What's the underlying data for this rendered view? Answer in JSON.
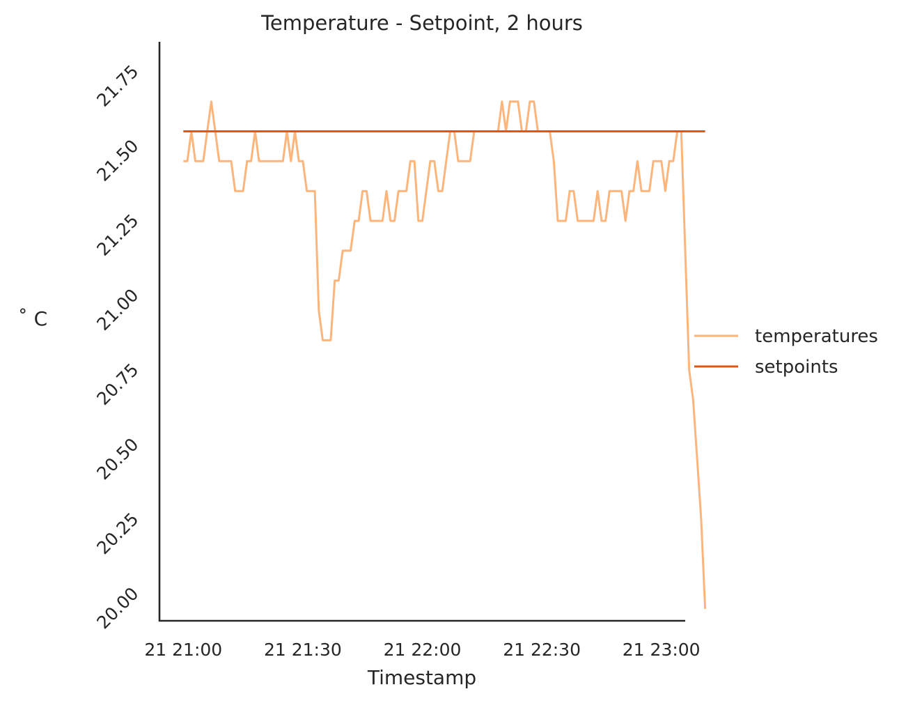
{
  "chart_data": {
    "type": "line",
    "title": "Temperature - Setpoint, 2 hours",
    "xlabel": "Timestamp",
    "ylabel": "$^\\circ$C",
    "ylabel_display": "˚ C",
    "x_tick_labels": [
      "21 21:00",
      "21 21:30",
      "21 22:00",
      "21 22:30",
      "21 23:00"
    ],
    "y_tick_labels": [
      "20.00",
      "20.25",
      "20.50",
      "20.75",
      "21.00",
      "21.25",
      "21.50",
      "21.75"
    ],
    "y_ticks": [
      20.0,
      20.25,
      20.5,
      20.75,
      21.0,
      21.25,
      21.5,
      21.75
    ],
    "x_ticks": [
      "21:00",
      "21:30",
      "22:00",
      "22:30",
      "23:00"
    ],
    "xlim": [
      "20:54",
      "23:06"
    ],
    "ylim": [
      19.96,
      21.9
    ],
    "grid": false,
    "legend_position": "center-right outside",
    "series": [
      {
        "name": "temperatures",
        "color": "#fdb57b",
        "points": [
          [
            "21:00",
            21.5
          ],
          [
            "21:01",
            21.5
          ],
          [
            "21:02",
            21.6
          ],
          [
            "21:03",
            21.5
          ],
          [
            "21:04",
            21.5
          ],
          [
            "21:05",
            21.5
          ],
          [
            "21:06",
            21.6
          ],
          [
            "21:07",
            21.7
          ],
          [
            "21:08",
            21.6
          ],
          [
            "21:09",
            21.5
          ],
          [
            "21:10",
            21.5
          ],
          [
            "21:11",
            21.5
          ],
          [
            "21:12",
            21.5
          ],
          [
            "21:13",
            21.4
          ],
          [
            "21:14",
            21.4
          ],
          [
            "21:15",
            21.4
          ],
          [
            "21:16",
            21.5
          ],
          [
            "21:17",
            21.5
          ],
          [
            "21:18",
            21.6
          ],
          [
            "21:19",
            21.5
          ],
          [
            "21:20",
            21.5
          ],
          [
            "21:21",
            21.5
          ],
          [
            "21:22",
            21.5
          ],
          [
            "21:23",
            21.5
          ],
          [
            "21:24",
            21.5
          ],
          [
            "21:25",
            21.5
          ],
          [
            "21:26",
            21.6
          ],
          [
            "21:27",
            21.5
          ],
          [
            "21:28",
            21.6
          ],
          [
            "21:29",
            21.5
          ],
          [
            "21:30",
            21.5
          ],
          [
            "21:31",
            21.4
          ],
          [
            "21:32",
            21.4
          ],
          [
            "21:33",
            21.4
          ],
          [
            "21:34",
            21.0
          ],
          [
            "21:35",
            20.9
          ],
          [
            "21:36",
            20.9
          ],
          [
            "21:37",
            20.9
          ],
          [
            "21:38",
            21.1
          ],
          [
            "21:39",
            21.1
          ],
          [
            "21:40",
            21.2
          ],
          [
            "21:41",
            21.2
          ],
          [
            "21:42",
            21.2
          ],
          [
            "21:43",
            21.3
          ],
          [
            "21:44",
            21.3
          ],
          [
            "21:45",
            21.4
          ],
          [
            "21:46",
            21.4
          ],
          [
            "21:47",
            21.3
          ],
          [
            "21:48",
            21.3
          ],
          [
            "21:49",
            21.3
          ],
          [
            "21:50",
            21.3
          ],
          [
            "21:51",
            21.4
          ],
          [
            "21:52",
            21.3
          ],
          [
            "21:53",
            21.3
          ],
          [
            "21:54",
            21.4
          ],
          [
            "21:55",
            21.4
          ],
          [
            "21:56",
            21.4
          ],
          [
            "21:57",
            21.5
          ],
          [
            "21:58",
            21.5
          ],
          [
            "21:59",
            21.3
          ],
          [
            "22:00",
            21.3
          ],
          [
            "22:01",
            21.4
          ],
          [
            "22:02",
            21.5
          ],
          [
            "22:03",
            21.5
          ],
          [
            "22:04",
            21.4
          ],
          [
            "22:05",
            21.4
          ],
          [
            "22:06",
            21.5
          ],
          [
            "22:07",
            21.6
          ],
          [
            "22:08",
            21.6
          ],
          [
            "22:09",
            21.5
          ],
          [
            "22:10",
            21.5
          ],
          [
            "22:11",
            21.5
          ],
          [
            "22:12",
            21.5
          ],
          [
            "22:13",
            21.6
          ],
          [
            "22:14",
            21.6
          ],
          [
            "22:15",
            21.6
          ],
          [
            "22:16",
            21.6
          ],
          [
            "22:17",
            21.6
          ],
          [
            "22:18",
            21.6
          ],
          [
            "22:19",
            21.6
          ],
          [
            "22:20",
            21.7
          ],
          [
            "22:21",
            21.6
          ],
          [
            "22:22",
            21.7
          ],
          [
            "22:23",
            21.7
          ],
          [
            "22:24",
            21.7
          ],
          [
            "22:25",
            21.6
          ],
          [
            "22:26",
            21.6
          ],
          [
            "22:27",
            21.7
          ],
          [
            "22:28",
            21.7
          ],
          [
            "22:29",
            21.6
          ],
          [
            "22:30",
            21.6
          ],
          [
            "22:31",
            21.6
          ],
          [
            "22:32",
            21.6
          ],
          [
            "22:33",
            21.5
          ],
          [
            "22:34",
            21.3
          ],
          [
            "22:35",
            21.3
          ],
          [
            "22:36",
            21.3
          ],
          [
            "22:37",
            21.4
          ],
          [
            "22:38",
            21.4
          ],
          [
            "22:39",
            21.3
          ],
          [
            "22:40",
            21.3
          ],
          [
            "22:41",
            21.3
          ],
          [
            "22:42",
            21.3
          ],
          [
            "22:43",
            21.3
          ],
          [
            "22:44",
            21.4
          ],
          [
            "22:45",
            21.3
          ],
          [
            "22:46",
            21.3
          ],
          [
            "22:47",
            21.4
          ],
          [
            "22:48",
            21.4
          ],
          [
            "22:49",
            21.4
          ],
          [
            "22:50",
            21.4
          ],
          [
            "22:51",
            21.3
          ],
          [
            "22:52",
            21.4
          ],
          [
            "22:53",
            21.4
          ],
          [
            "22:54",
            21.5
          ],
          [
            "22:55",
            21.4
          ],
          [
            "22:56",
            21.4
          ],
          [
            "22:57",
            21.4
          ],
          [
            "22:58",
            21.5
          ],
          [
            "22:59",
            21.5
          ],
          [
            "23:00",
            21.5
          ],
          [
            "23:01",
            21.4
          ],
          [
            "23:02",
            21.5
          ],
          [
            "23:03",
            21.5
          ],
          [
            "23:04",
            21.6
          ],
          [
            "23:05",
            21.6
          ],
          [
            "23:06",
            21.2
          ],
          [
            "23:07",
            20.8
          ],
          [
            "23:08",
            20.7
          ],
          [
            "23:09",
            20.5
          ],
          [
            "23:10",
            20.3
          ],
          [
            "23:11",
            20.0
          ]
        ]
      },
      {
        "name": "setpoints",
        "color": "#e6550d",
        "points": [
          [
            "21:00",
            21.6
          ],
          [
            "23:11",
            21.6
          ]
        ]
      }
    ]
  }
}
